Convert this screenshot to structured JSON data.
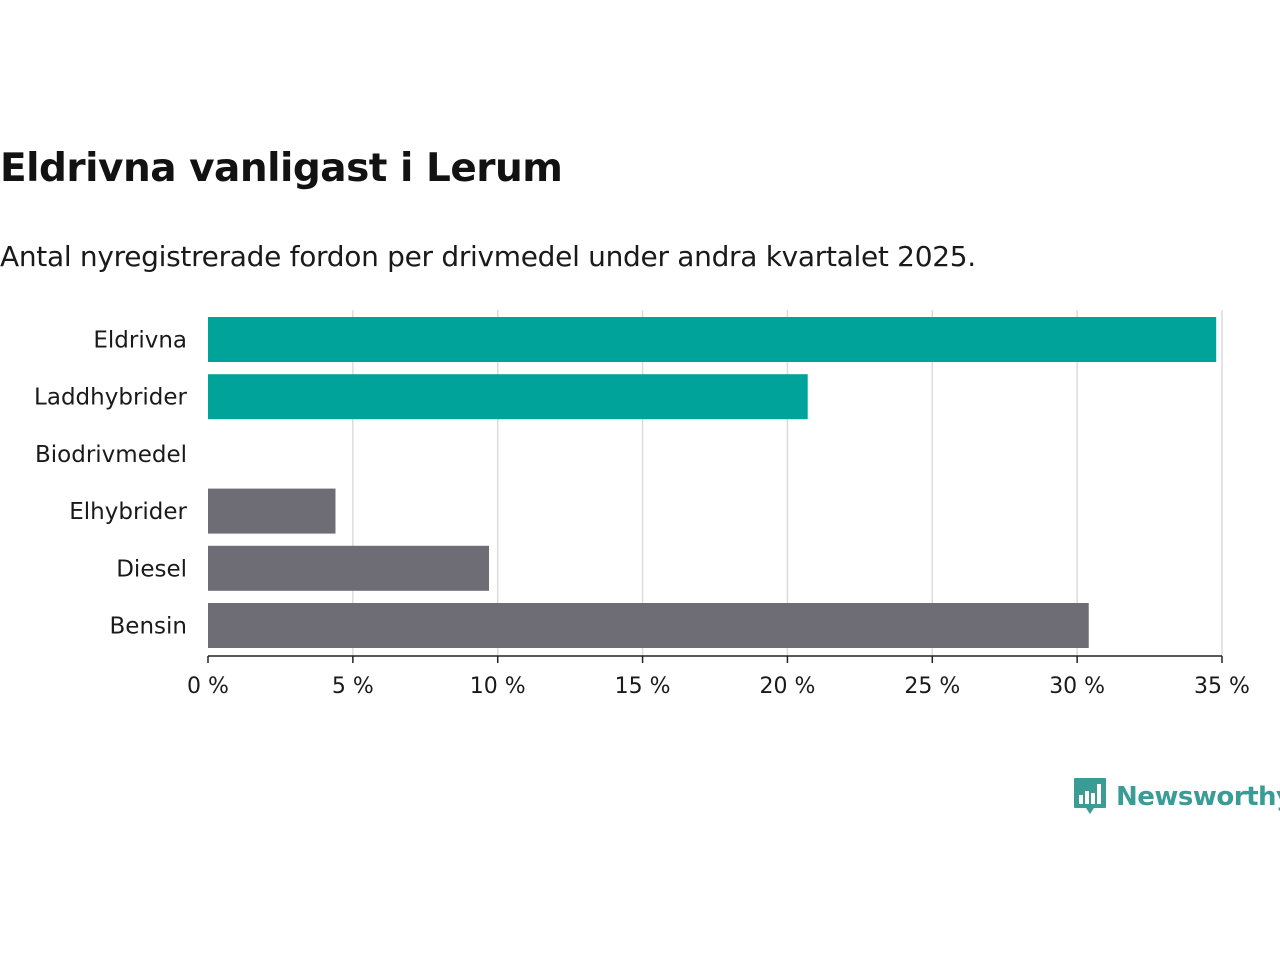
{
  "header": {
    "title": "Eldrivna vanligast i Lerum",
    "subtitle": "Antal nyregistrerade fordon per drivmedel under andra kvartalet 2025."
  },
  "chart_data": {
    "type": "bar",
    "orientation": "horizontal",
    "categories": [
      "Eldrivna",
      "Laddhybrider",
      "Biodrivmedel",
      "Elhybrider",
      "Diesel",
      "Bensin"
    ],
    "values": [
      34.8,
      20.7,
      0,
      4.4,
      9.7,
      30.4
    ],
    "colors": [
      "#00a39a",
      "#00a39a",
      "#00a39a",
      "#6e6c75",
      "#6e6c75",
      "#6e6c75"
    ],
    "xlim": [
      0,
      35
    ],
    "xticks": [
      0,
      5,
      10,
      15,
      20,
      25,
      30,
      35
    ],
    "tick_suffix": " %",
    "grid": true
  },
  "branding": {
    "logo_text": "Newsworthy",
    "logo_icon": "bar-chart-speech-bubble-icon",
    "color": "#3b9c95"
  }
}
